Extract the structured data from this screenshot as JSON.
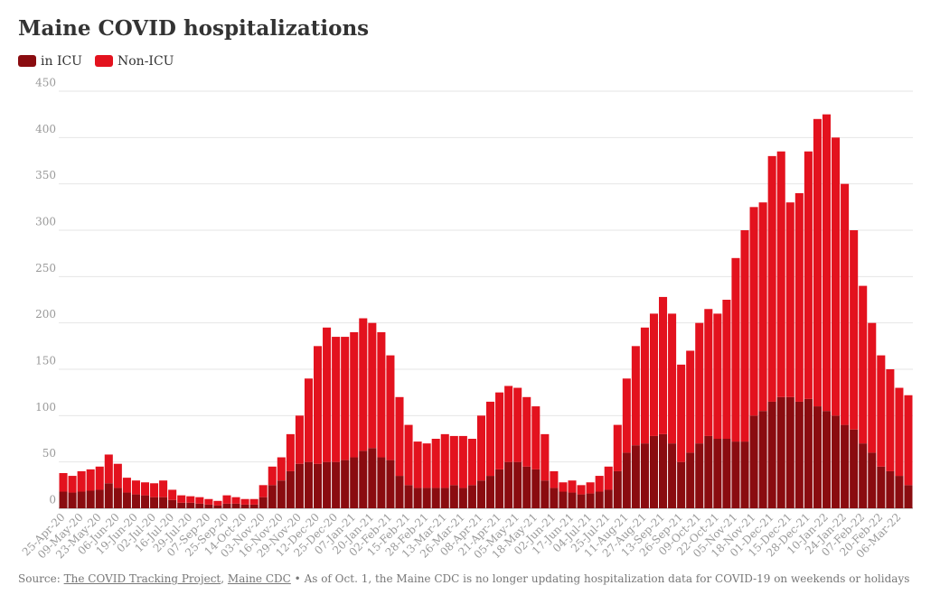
{
  "chart_data": {
    "type": "stacked-bar",
    "title": "Maine COVID hospitalizations",
    "categories": [
      "25-Apr-20",
      null,
      "09-May-20",
      null,
      "23-May-20",
      null,
      "06-Jun-20",
      null,
      "19-Jun-20",
      null,
      "02-Jul-20",
      null,
      "16-Jul-20",
      null,
      "29-Jul-20",
      null,
      "07-Sep-20",
      null,
      "25-Sep-20",
      null,
      "14-Oct-20",
      null,
      "03-Nov-20",
      null,
      "16-Nov-20",
      null,
      "29-Nov-20",
      null,
      "12-Dec-20",
      null,
      "25-Dec-20",
      null,
      "07-Jan-21",
      null,
      "20-Jan-21",
      null,
      "02-Feb-21",
      null,
      "15-Feb-21",
      null,
      "28-Feb-21",
      null,
      "13-Mar-21",
      null,
      "26-Mar-21",
      null,
      "08-Apr-21",
      null,
      "21-Apr-21",
      null,
      "05-May-21",
      null,
      "18-May-21",
      null,
      "02-Jun-21",
      null,
      "17-Jun-21",
      null,
      "04-Jul-21",
      null,
      "25-Jul-21",
      null,
      "11-Aug-21",
      null,
      "27-Aug-21",
      null,
      "13-Sep-21",
      null,
      "26-Sep-21",
      null,
      "09-Oct-21",
      null,
      "22-Oct-21",
      null,
      "05-Nov-21",
      null,
      "18-Nov-21",
      null,
      "01-Dec-21",
      null,
      "15-Dec-21",
      null,
      "28-Dec-21",
      null,
      "10-Jan-22",
      null,
      "24-Jan-22",
      null,
      "07-Feb-22",
      null,
      "20-Feb-22",
      null,
      "06-Mar-22",
      null
    ],
    "series": [
      {
        "name": "in ICU",
        "color": "#8a0c10",
        "values": [
          18,
          17,
          18,
          19,
          20,
          27,
          22,
          17,
          15,
          14,
          12,
          12,
          9,
          6,
          6,
          5,
          4,
          3,
          5,
          5,
          4,
          4,
          12,
          25,
          30,
          40,
          48,
          50,
          48,
          50,
          50,
          52,
          55,
          62,
          65,
          55,
          52,
          35,
          25,
          22,
          22,
          22,
          22,
          25,
          22,
          25,
          30,
          35,
          42,
          50,
          50,
          45,
          42,
          30,
          22,
          18,
          17,
          15,
          16,
          18,
          20,
          40,
          60,
          68,
          70,
          78,
          80,
          70,
          50,
          60,
          70,
          78,
          75,
          75,
          72,
          72,
          100,
          105,
          115,
          120,
          120,
          115,
          118,
          110,
          105,
          100,
          90,
          85,
          70,
          60,
          45,
          40,
          35,
          25
        ]
      },
      {
        "name": "Non-ICU",
        "color": "#e3121e",
        "values": [
          20,
          18,
          22,
          23,
          25,
          31,
          26,
          16,
          15,
          14,
          15,
          18,
          11,
          8,
          7,
          7,
          6,
          5,
          9,
          7,
          6,
          6,
          13,
          20,
          25,
          40,
          52,
          90,
          127,
          145,
          135,
          133,
          135,
          143,
          135,
          135,
          113,
          85,
          65,
          50,
          48,
          53,
          58,
          53,
          56,
          50,
          70,
          80,
          83,
          82,
          80,
          75,
          68,
          50,
          18,
          10,
          13,
          10,
          12,
          17,
          25,
          50,
          80,
          107,
          125,
          132,
          148,
          140,
          105,
          110,
          130,
          137,
          135,
          150,
          198,
          228,
          225,
          225,
          265,
          265,
          210,
          225,
          267,
          310,
          320,
          300,
          260,
          215,
          170,
          140,
          120,
          110,
          95,
          97
        ]
      }
    ],
    "ylim": [
      0,
      450
    ],
    "yticks": [
      0,
      50,
      100,
      150,
      200,
      250,
      300,
      350,
      400,
      450
    ],
    "grid": true,
    "legend": "top-left"
  },
  "source": {
    "prefix": "Source:",
    "links": [
      "The COVID Tracking Project",
      "Maine CDC"
    ],
    "separator": ",",
    "note": "• As of Oct. 1, the Maine CDC is no longer updating hospitalization data for COVID-19 on weekends or holidays"
  }
}
